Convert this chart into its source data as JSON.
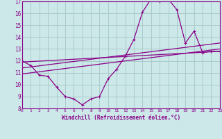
{
  "xlabel": "Windchill (Refroidissement éolien,°C)",
  "bg_color": "#cce8e8",
  "grid_color": "#aacccc",
  "line_color": "#880088",
  "xmin": 0,
  "xmax": 23,
  "ymin": 8,
  "ymax": 17,
  "xticks": [
    0,
    1,
    2,
    3,
    4,
    5,
    6,
    7,
    8,
    9,
    10,
    11,
    12,
    13,
    14,
    15,
    16,
    17,
    18,
    19,
    20,
    21,
    22,
    23
  ],
  "yticks": [
    8,
    9,
    10,
    11,
    12,
    13,
    14,
    15,
    16,
    17
  ],
  "line1_x": [
    0,
    1,
    2,
    3,
    4,
    5,
    6,
    7,
    8,
    9,
    10,
    11,
    12,
    13,
    14,
    15,
    16,
    17,
    18,
    19,
    20,
    21,
    22,
    23
  ],
  "line1_y": [
    12.0,
    11.6,
    10.8,
    10.7,
    9.8,
    9.0,
    8.8,
    8.3,
    8.8,
    9.0,
    10.5,
    11.3,
    12.4,
    13.8,
    16.1,
    17.2,
    17.0,
    17.2,
    16.3,
    13.5,
    14.5,
    12.7,
    12.8,
    12.8
  ],
  "line2_x": [
    0,
    23
  ],
  "line2_y": [
    11.9,
    12.8
  ],
  "line3_x": [
    0,
    23
  ],
  "line3_y": [
    10.9,
    13.0
  ],
  "line4_x": [
    0,
    23
  ],
  "line4_y": [
    11.4,
    13.5
  ]
}
